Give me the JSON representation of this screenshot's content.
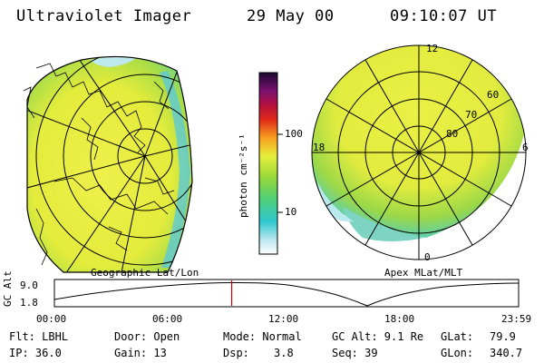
{
  "header": {
    "instrument": "Ultraviolet Imager",
    "date": "29 May 00",
    "time": "09:10:07 UT"
  },
  "left_map": {
    "caption": "Geographic Lat/Lon"
  },
  "right_map": {
    "caption": "Apex MLat/MLT",
    "mlt_labels": [
      "12",
      "18",
      "6",
      "0"
    ],
    "lat_labels": [
      "60",
      "70",
      "80"
    ]
  },
  "colorbar": {
    "unit_label": "photon cm⁻²s⁻¹",
    "ticks": [
      "100",
      "10"
    ],
    "scale": "log"
  },
  "timeline": {
    "y_label": "GC Alt",
    "y_ticks": [
      "9.0",
      "1.8"
    ],
    "x_ticks": [
      "00:00",
      "06:00",
      "12:00",
      "18:00",
      "23:59"
    ],
    "current_time_fraction": 0.382
  },
  "status": {
    "flt": "Flt: LBHL",
    "ip": "IP: 36.0",
    "door": "Door: Open",
    "gain": "Gain: 13",
    "mode": "Mode: Normal",
    "dsp_label": "Dsp:",
    "dsp_value": "3.8",
    "gc_alt": "GC Alt: 9.1 Re",
    "seq": "Seq: 39",
    "glat_label": "GLat:",
    "glat_value": "79.9",
    "glon_label": "GLon:",
    "glon_value": "340.7"
  },
  "colors": {
    "background": "#ffffff",
    "image_yellow": "#e8ef3c",
    "image_green": "#8ed24a",
    "image_cyan": "#39cfd6",
    "marker": "#cc0000"
  }
}
